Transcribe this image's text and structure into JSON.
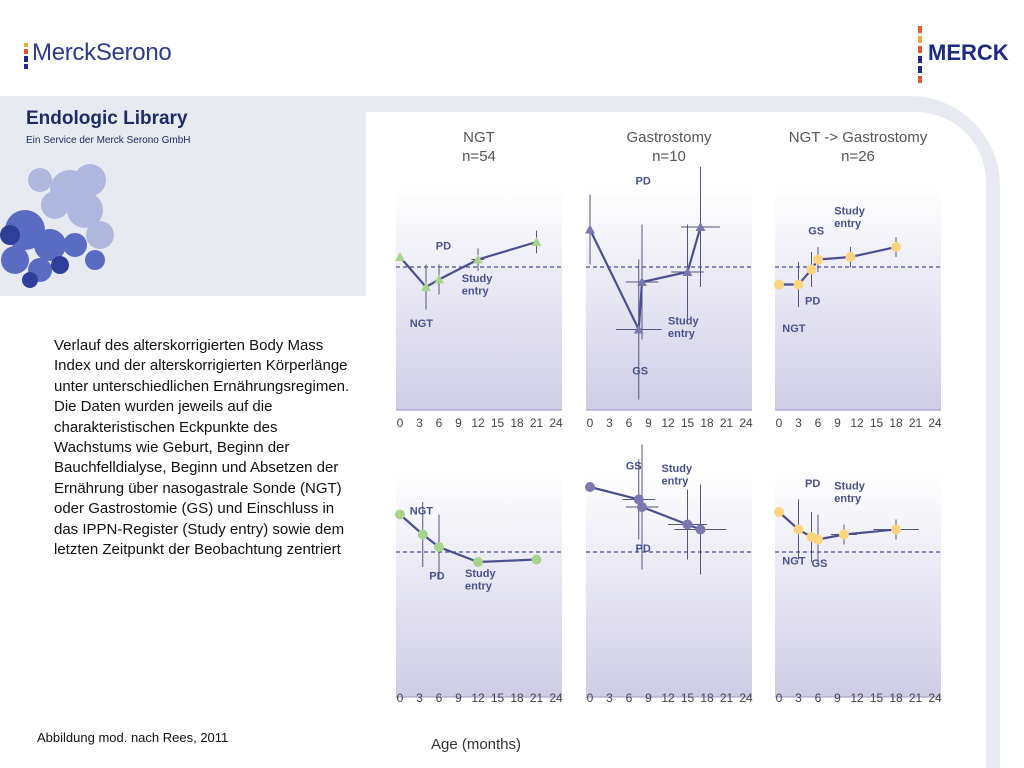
{
  "header": {
    "left_logo_text": "MerckSerono",
    "right_logo_text": "MERCK"
  },
  "sidebar": {
    "title": "Endologic Library",
    "subtitle": "Ein Service der Merck Serono GmbH"
  },
  "caption": "Verlauf des alterskorrigierten Body Mass Index und der alterskorrigierten Körperlänge unter unterschiedlichen Ernährungsregimen. Die Daten wurden jeweils auf die charakteristischen Eckpunkte des Wachstums wie Geburt, Beginn der Bauchfelldialyse, Beginn und Absetzen der Ernährung über nasogastrale Sonde (NGT) oder Gastrostomie (GS) und Einschluss in das IPPN-Register (Study entry) sowie dem letzten Zeitpunkt der Beobachtung zentriert",
  "source": "Abbildung mod. nach Rees, 2011",
  "colors": {
    "brand_blue": "#2e3a8c",
    "line": "#4a4f8f",
    "green": "#a8d38d",
    "purple": "#7b78b0",
    "yellow": "#fbd57d",
    "panel_top": "#ffffff",
    "panel_bottom": "#cfcde6"
  },
  "chart_data": {
    "x_ticks": [
      "0",
      "3",
      "6",
      "9",
      "12",
      "15",
      "18",
      "21",
      "24"
    ],
    "xlim": [
      0,
      24
    ],
    "xlabel": "Age (months)",
    "columns": [
      {
        "title": "NGT",
        "n": "n=54"
      },
      {
        "title": "Gastrostomy",
        "n": "n=10"
      },
      {
        "title": "NGT -> Gastrostomy",
        "n": "n=26"
      }
    ],
    "panels": [
      {
        "row": 0,
        "col": 0,
        "type": "scatter",
        "marker": "triangle",
        "color": "green",
        "points": [
          [
            0,
            0.4
          ],
          [
            4,
            -0.8
          ],
          [
            6,
            -0.5
          ],
          [
            12,
            0.3
          ],
          [
            21,
            1.0
          ]
        ],
        "x_err": [
          0,
          0,
          0,
          1.0,
          0
        ],
        "y_err": [
          0,
          0.9,
          0.6,
          0.45,
          0.45
        ],
        "annotations": [
          {
            "text": "PD",
            "x": 5.5,
            "y": 0.7
          },
          {
            "text": "NGT",
            "x": 1.5,
            "y": -2.4
          },
          {
            "text": "Study",
            "x": 9.5,
            "y": -0.6
          },
          {
            "text": "entry",
            "x": 9.5,
            "y": -1.1
          }
        ]
      },
      {
        "row": 0,
        "col": 1,
        "type": "scatter",
        "marker": "triangle",
        "color": "purple",
        "points": [
          [
            0,
            1.5
          ],
          [
            7.5,
            -2.5
          ],
          [
            8,
            -0.6
          ],
          [
            15,
            -0.2
          ],
          [
            17,
            1.6
          ]
        ],
        "x_err": [
          0,
          3.5,
          2.5,
          2.5,
          3.0
        ],
        "y_err": [
          1.4,
          2.8,
          2.3,
          1.9,
          2.4
        ],
        "annotations": [
          {
            "text": "PD",
            "x": 7,
            "y": 3.3
          },
          {
            "text": "GS",
            "x": 6.5,
            "y": -4.3
          },
          {
            "text": "Study",
            "x": 12,
            "y": -2.3
          },
          {
            "text": "entry",
            "x": 12,
            "y": -2.8
          }
        ]
      },
      {
        "row": 0,
        "col": 2,
        "type": "scatter",
        "marker": "circle",
        "color": "yellow",
        "points": [
          [
            0,
            -0.7
          ],
          [
            3,
            -0.7
          ],
          [
            5,
            -0.1
          ],
          [
            6,
            0.3
          ],
          [
            11,
            0.4
          ],
          [
            18,
            0.8
          ]
        ],
        "x_err": [
          0,
          0,
          0,
          0,
          0,
          0
        ],
        "y_err": [
          0,
          0.9,
          0.7,
          0.5,
          0.4,
          0.4
        ],
        "annotations": [
          {
            "text": "Study",
            "x": 8.5,
            "y": 2.1
          },
          {
            "text": "entry",
            "x": 8.5,
            "y": 1.6
          },
          {
            "text": "GS",
            "x": 4.5,
            "y": 1.3
          },
          {
            "text": "PD",
            "x": 4,
            "y": -1.5
          },
          {
            "text": "NGT",
            "x": 0.5,
            "y": -2.6
          }
        ]
      },
      {
        "row": 1,
        "col": 0,
        "type": "scatter",
        "marker": "circle",
        "color": "green",
        "points": [
          [
            0,
            1.5
          ],
          [
            3.5,
            0.7
          ],
          [
            6,
            0.2
          ],
          [
            12,
            -0.4
          ],
          [
            21,
            -0.3
          ]
        ],
        "x_err": [
          0,
          0,
          0,
          0,
          0
        ],
        "y_err": [
          0,
          1.3,
          1.3,
          0,
          0
        ],
        "annotations": [
          {
            "text": "NGT",
            "x": 1.5,
            "y": 1.5
          },
          {
            "text": "PD",
            "x": 4.5,
            "y": -1.1
          },
          {
            "text": "Study",
            "x": 10,
            "y": -1.0
          },
          {
            "text": "entry",
            "x": 10,
            "y": -1.5
          }
        ]
      },
      {
        "row": 1,
        "col": 1,
        "type": "scatter",
        "marker": "circle",
        "color": "purple",
        "points": [
          [
            0,
            2.6
          ],
          [
            7.5,
            2.1
          ],
          [
            8,
            1.8
          ],
          [
            15,
            1.1
          ],
          [
            17,
            0.9
          ]
        ],
        "x_err": [
          0,
          2.5,
          2.5,
          3.0,
          4.0
        ],
        "y_err": [
          0,
          1.6,
          2.5,
          1.4,
          1.8
        ],
        "annotations": [
          {
            "text": "GS",
            "x": 5.5,
            "y": 3.3
          },
          {
            "text": "Study",
            "x": 11,
            "y": 3.2
          },
          {
            "text": "entry",
            "x": 11,
            "y": 2.7
          },
          {
            "text": "PD",
            "x": 7,
            "y": 0.0
          }
        ]
      },
      {
        "row": 1,
        "col": 2,
        "type": "scatter",
        "marker": "circle",
        "color": "yellow",
        "points": [
          [
            0,
            1.6
          ],
          [
            3,
            0.9
          ],
          [
            5,
            0.6
          ],
          [
            6,
            0.5
          ],
          [
            10,
            0.7
          ],
          [
            18,
            0.9
          ]
        ],
        "x_err": [
          0,
          0,
          0,
          0,
          2.0,
          3.5
        ],
        "y_err": [
          0,
          1.2,
          1.0,
          1.0,
          0.4,
          0.4
        ],
        "annotations": [
          {
            "text": "PD",
            "x": 4,
            "y": 2.6
          },
          {
            "text": "Study",
            "x": 8.5,
            "y": 2.5
          },
          {
            "text": "entry",
            "x": 8.5,
            "y": 2.0
          },
          {
            "text": "NGT",
            "x": 0.5,
            "y": -0.5
          },
          {
            "text": "GS",
            "x": 5,
            "y": -0.6
          }
        ]
      }
    ]
  }
}
